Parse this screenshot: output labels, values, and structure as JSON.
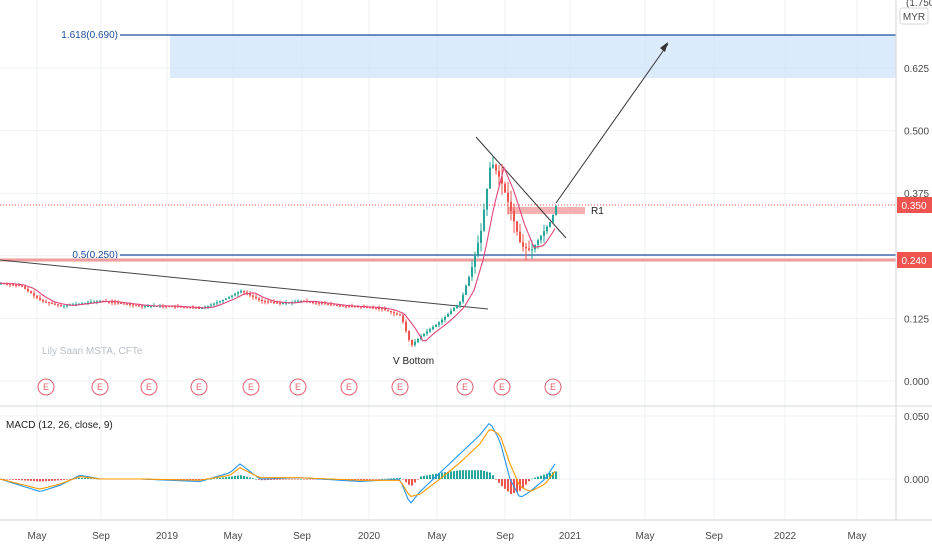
{
  "chart_data": {
    "type": "candlestick",
    "currency": "MYR",
    "watermark": "Lily Saari MSTA, CFTe",
    "price_axis": {
      "ticks": [
        "0.000",
        "0.125",
        "0.250",
        "0.375",
        "0.500",
        "0.625"
      ],
      "ylim": [
        0,
        0.75
      ],
      "top_label_partial": "(1.750)"
    },
    "time_axis": {
      "ticks": [
        "May",
        "Sep",
        "2019",
        "May",
        "Sep",
        "2020",
        "May",
        "Sep",
        "2021",
        "May",
        "Sep",
        "2022",
        "May"
      ]
    },
    "price_labels": [
      {
        "value": "0.350",
        "color": "#ef5350"
      },
      {
        "value": "0.240",
        "color": "#ef5350"
      }
    ],
    "fib_levels": [
      {
        "label": "1.618(0.690)",
        "price": 0.69
      },
      {
        "label": "0.5(0.250)",
        "price": 0.25
      }
    ],
    "annotations": {
      "v_bottom": "V Bottom",
      "r1": "R1"
    },
    "earnings_marker": "E",
    "earnings_count": 11,
    "price_series_approx": [
      [
        0,
        0.195
      ],
      [
        20,
        0.19
      ],
      [
        40,
        0.16
      ],
      [
        60,
        0.15
      ],
      [
        80,
        0.155
      ],
      [
        100,
        0.16
      ],
      [
        120,
        0.155
      ],
      [
        140,
        0.15
      ],
      [
        160,
        0.15
      ],
      [
        180,
        0.148
      ],
      [
        200,
        0.145
      ],
      [
        220,
        0.16
      ],
      [
        240,
        0.18
      ],
      [
        260,
        0.16
      ],
      [
        280,
        0.155
      ],
      [
        300,
        0.16
      ],
      [
        320,
        0.155
      ],
      [
        340,
        0.15
      ],
      [
        360,
        0.148
      ],
      [
        380,
        0.145
      ],
      [
        400,
        0.13
      ],
      [
        410,
        0.07
      ],
      [
        420,
        0.09
      ],
      [
        440,
        0.12
      ],
      [
        460,
        0.16
      ],
      [
        470,
        0.22
      ],
      [
        480,
        0.3
      ],
      [
        490,
        0.44
      ],
      [
        500,
        0.4
      ],
      [
        510,
        0.34
      ],
      [
        520,
        0.27
      ],
      [
        530,
        0.26
      ],
      [
        540,
        0.29
      ],
      [
        550,
        0.32
      ],
      [
        555,
        0.35
      ]
    ],
    "macd": {
      "label": "MACD (12, 26, close, 9)",
      "ticks": [
        "0.050",
        "0.000"
      ],
      "ylim": [
        -0.03,
        0.055
      ],
      "macd_line_approx": [
        [
          0,
          0.0
        ],
        [
          40,
          -0.01
        ],
        [
          60,
          -0.005
        ],
        [
          80,
          0.003
        ],
        [
          100,
          0.0
        ],
        [
          140,
          0.0
        ],
        [
          200,
          -0.002
        ],
        [
          230,
          0.005
        ],
        [
          240,
          0.012
        ],
        [
          260,
          0.0
        ],
        [
          300,
          0.001
        ],
        [
          360,
          -0.002
        ],
        [
          400,
          0.0
        ],
        [
          410,
          -0.02
        ],
        [
          420,
          -0.01
        ],
        [
          440,
          0.005
        ],
        [
          460,
          0.02
        ],
        [
          480,
          0.035
        ],
        [
          490,
          0.045
        ],
        [
          500,
          0.03
        ],
        [
          510,
          0.0
        ],
        [
          520,
          -0.015
        ],
        [
          530,
          -0.01
        ],
        [
          545,
          0.0
        ],
        [
          555,
          0.012
        ]
      ],
      "signal_line_approx": [
        [
          0,
          0.0
        ],
        [
          40,
          -0.008
        ],
        [
          60,
          -0.004
        ],
        [
          80,
          0.002
        ],
        [
          100,
          0.0
        ],
        [
          140,
          0.0
        ],
        [
          200,
          -0.001
        ],
        [
          230,
          0.003
        ],
        [
          240,
          0.009
        ],
        [
          260,
          0.001
        ],
        [
          300,
          0.001
        ],
        [
          360,
          -0.001
        ],
        [
          400,
          -0.001
        ],
        [
          410,
          -0.014
        ],
        [
          420,
          -0.012
        ],
        [
          440,
          0.0
        ],
        [
          460,
          0.013
        ],
        [
          480,
          0.028
        ],
        [
          490,
          0.04
        ],
        [
          500,
          0.035
        ],
        [
          510,
          0.012
        ],
        [
          520,
          -0.006
        ],
        [
          530,
          -0.01
        ],
        [
          545,
          -0.004
        ],
        [
          555,
          0.006
        ]
      ]
    }
  }
}
